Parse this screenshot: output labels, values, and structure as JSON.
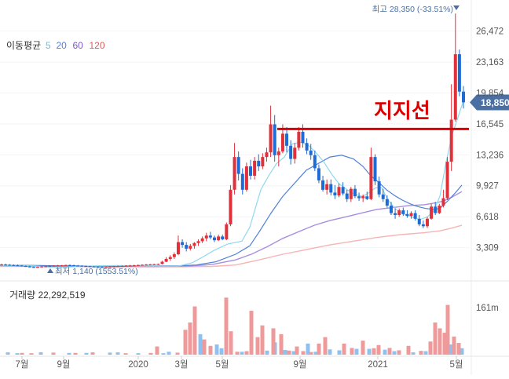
{
  "chart_data": {
    "type": "candlestick",
    "price_axis": {
      "ticks": [
        "26,472",
        "23,163",
        "19,854",
        "16,545",
        "13,236",
        "9,927",
        "6,618",
        "3,309"
      ],
      "ylim": [
        0,
        29800
      ]
    },
    "volume_axis": {
      "ticks": [
        "161m"
      ],
      "ylim": [
        0,
        236
      ]
    },
    "x_labels": [
      "7월",
      "9월",
      "2020",
      "3월",
      "5월",
      "9월",
      "2021",
      "5월"
    ],
    "ma_legend": {
      "label": "이동평균",
      "items": [
        {
          "name": "5",
          "color": "#5cc5e8"
        },
        {
          "name": "20",
          "color": "#4f7fd8"
        },
        {
          "name": "60",
          "color": "#7b57c8"
        },
        {
          "name": "120",
          "color": "#e05a5a"
        }
      ]
    },
    "current_price": "18,850",
    "high_label": "최고 28,350 (-33.51%)",
    "low_label": "최저 1,140 (1553.51%)",
    "volume_label": "거래량 22,292,519",
    "annotation": "지지선",
    "support_level": 16000,
    "colors": {
      "up": "#e0313b",
      "down": "#1f6bd4",
      "vol_up": "#ef9a9a",
      "vol_down": "#90c0f0",
      "ma5": "#8fd8ee",
      "ma60": "#a98ee0",
      "ma120": "#f6b4b4",
      "support": "#dd0000",
      "badge": "#4a6fa5",
      "axis_text": "#555555"
    },
    "candles": [
      [
        1450,
        1600,
        1400,
        1500
      ],
      [
        1500,
        1600,
        1420,
        1480
      ],
      [
        1480,
        1550,
        1400,
        1450
      ],
      [
        1450,
        1500,
        1380,
        1420
      ],
      [
        1420,
        1500,
        1350,
        1400
      ],
      [
        1400,
        1450,
        1300,
        1350
      ],
      [
        1350,
        1400,
        1250,
        1300
      ],
      [
        1300,
        1380,
        1200,
        1250
      ],
      [
        1250,
        1300,
        1150,
        1200
      ],
      [
        1200,
        1280,
        1140,
        1250
      ],
      [
        1250,
        1350,
        1200,
        1300
      ],
      [
        1300,
        1380,
        1250,
        1320
      ],
      [
        1320,
        1400,
        1280,
        1350
      ],
      [
        1350,
        1420,
        1300,
        1380
      ],
      [
        1380,
        1450,
        1320,
        1400
      ],
      [
        1400,
        1460,
        1350,
        1420
      ],
      [
        1420,
        1480,
        1380,
        1450
      ],
      [
        1450,
        1500,
        1400,
        1430
      ],
      [
        1430,
        1480,
        1380,
        1400
      ],
      [
        1400,
        1450,
        1350,
        1380
      ],
      [
        1380,
        1420,
        1300,
        1350
      ],
      [
        1350,
        1400,
        1300,
        1330
      ],
      [
        1330,
        1380,
        1280,
        1300
      ],
      [
        1300,
        1350,
        1250,
        1280
      ],
      [
        1280,
        1320,
        1220,
        1250
      ],
      [
        1250,
        1300,
        1200,
        1230
      ],
      [
        1230,
        1300,
        1180,
        1250
      ],
      [
        1250,
        1320,
        1200,
        1280
      ],
      [
        1280,
        1350,
        1230,
        1300
      ],
      [
        1300,
        1380,
        1250,
        1330
      ],
      [
        1330,
        1400,
        1280,
        1350
      ],
      [
        1350,
        1420,
        1300,
        1380
      ],
      [
        1380,
        1450,
        1330,
        1400
      ],
      [
        1400,
        1480,
        1350,
        1420
      ],
      [
        1420,
        1500,
        1380,
        1450
      ],
      [
        1450,
        1520,
        1400,
        1480
      ],
      [
        1480,
        1550,
        1430,
        1500
      ],
      [
        1500,
        1560,
        1450,
        1520
      ],
      [
        1520,
        1580,
        1470,
        1540
      ],
      [
        1540,
        1600,
        1500,
        1560
      ],
      [
        1560,
        1900,
        1520,
        1800
      ],
      [
        1800,
        2300,
        1750,
        2100
      ],
      [
        2100,
        2500,
        1900,
        2300
      ],
      [
        2300,
        2800,
        2100,
        2600
      ],
      [
        2600,
        4600,
        2500,
        3900
      ],
      [
        3900,
        4200,
        3300,
        3600
      ],
      [
        3600,
        3900,
        2900,
        3200
      ],
      [
        3200,
        3700,
        3000,
        3500
      ],
      [
        3500,
        3900,
        3200,
        3800
      ],
      [
        3800,
        4200,
        3500,
        4000
      ],
      [
        4000,
        4500,
        3800,
        4300
      ],
      [
        4300,
        4900,
        4000,
        4600
      ],
      [
        4600,
        5000,
        4200,
        4400
      ],
      [
        4400,
        4600,
        3900,
        4100
      ],
      [
        4100,
        4700,
        4000,
        4500
      ],
      [
        4500,
        4700,
        4100,
        4200
      ],
      [
        4200,
        6000,
        4100,
        5800
      ],
      [
        5800,
        10000,
        5600,
        9500
      ],
      [
        9500,
        14500,
        9000,
        13000
      ],
      [
        13000,
        13600,
        10500,
        11200
      ],
      [
        11200,
        11800,
        9000,
        9500
      ],
      [
        9500,
        12400,
        9300,
        12000
      ],
      [
        12000,
        12700,
        10600,
        11000
      ],
      [
        11000,
        13000,
        10600,
        12600
      ],
      [
        12600,
        13300,
        11500,
        12000
      ],
      [
        12000,
        13400,
        11700,
        13000
      ],
      [
        13000,
        14000,
        12500,
        13500
      ],
      [
        13500,
        18500,
        13000,
        16500
      ],
      [
        16500,
        17500,
        12500,
        13200
      ],
      [
        13200,
        14000,
        12000,
        13600
      ],
      [
        13600,
        16500,
        13400,
        15500
      ],
      [
        15500,
        16200,
        13500,
        14200
      ],
      [
        14200,
        14800,
        12200,
        12800
      ],
      [
        12800,
        14500,
        12300,
        14000
      ],
      [
        14000,
        16200,
        13700,
        15700
      ],
      [
        15700,
        16500,
        14000,
        14500
      ],
      [
        14500,
        15000,
        13300,
        13700
      ],
      [
        13700,
        14400,
        12700,
        13200
      ],
      [
        13200,
        13700,
        11500,
        11800
      ],
      [
        11800,
        12200,
        10200,
        10500
      ],
      [
        10500,
        11000,
        9300,
        9500
      ],
      [
        9500,
        10600,
        9000,
        10100
      ],
      [
        10100,
        10600,
        8900,
        9200
      ],
      [
        9200,
        10000,
        8500,
        8900
      ],
      [
        8900,
        10200,
        8700,
        9800
      ],
      [
        9800,
        10300,
        8900,
        9100
      ],
      [
        9100,
        9500,
        8200,
        8500
      ],
      [
        8500,
        9800,
        8200,
        9600
      ],
      [
        9600,
        10000,
        8600,
        8800
      ],
      [
        8800,
        9200,
        8300,
        8600
      ],
      [
        8600,
        9000,
        8200,
        8800
      ],
      [
        8800,
        9300,
        8400,
        8500
      ],
      [
        8500,
        14000,
        8400,
        13000
      ],
      [
        13000,
        13300,
        10000,
        10400
      ],
      [
        10400,
        10900,
        8700,
        9000
      ],
      [
        9000,
        9600,
        8200,
        8500
      ],
      [
        8500,
        8900,
        7600,
        7800
      ],
      [
        7800,
        8200,
        6800,
        7000
      ],
      [
        7000,
        7500,
        6400,
        6800
      ],
      [
        6800,
        7500,
        6600,
        7300
      ],
      [
        7300,
        7600,
        6700,
        6900
      ],
      [
        6900,
        7300,
        6500,
        6700
      ],
      [
        6700,
        7200,
        6400,
        7000
      ],
      [
        7000,
        7300,
        6200,
        6400
      ],
      [
        6400,
        6800,
        5600,
        5800
      ],
      [
        5800,
        6200,
        5400,
        5600
      ],
      [
        5600,
        6600,
        5400,
        6400
      ],
      [
        6400,
        8000,
        6300,
        7700
      ],
      [
        7700,
        8200,
        6800,
        7000
      ],
      [
        7000,
        8000,
        6900,
        7800
      ],
      [
        7800,
        9500,
        7600,
        8600
      ],
      [
        8600,
        13000,
        8400,
        12500
      ],
      [
        12500,
        20800,
        11500,
        17000
      ],
      [
        17000,
        28350,
        16800,
        24000
      ],
      [
        24000,
        24500,
        19500,
        20000
      ],
      [
        20000,
        20600,
        18200,
        18850
      ]
    ],
    "ma5": [
      [
        0,
        1380
      ],
      [
        20,
        1390
      ],
      [
        45,
        1350
      ],
      [
        65,
        1200
      ],
      [
        90,
        1250
      ],
      [
        120,
        1350
      ],
      [
        150,
        1400
      ],
      [
        180,
        1350
      ],
      [
        205,
        1330
      ],
      [
        228,
        1350
      ],
      [
        245,
        1700
      ],
      [
        258,
        2300
      ],
      [
        272,
        3000
      ],
      [
        290,
        3700
      ],
      [
        308,
        4000
      ],
      [
        318,
        5500
      ],
      [
        325,
        7500
      ],
      [
        332,
        9500
      ],
      [
        342,
        11000
      ],
      [
        352,
        12300
      ],
      [
        362,
        13000
      ],
      [
        372,
        14400
      ],
      [
        382,
        14600
      ],
      [
        392,
        14300
      ],
      [
        402,
        13500
      ],
      [
        412,
        12500
      ],
      [
        422,
        11200
      ],
      [
        432,
        10100
      ],
      [
        442,
        9500
      ],
      [
        452,
        9000
      ],
      [
        462,
        8800
      ],
      [
        470,
        9200
      ],
      [
        478,
        9700
      ],
      [
        486,
        9700
      ],
      [
        494,
        8400
      ],
      [
        504,
        7400
      ],
      [
        514,
        6900
      ],
      [
        524,
        6600
      ],
      [
        534,
        6300
      ],
      [
        544,
        6600
      ],
      [
        552,
        7200
      ],
      [
        560,
        8800
      ],
      [
        568,
        12500
      ],
      [
        576,
        15500
      ],
      [
        584,
        17500
      ],
      [
        590,
        19000
      ]
    ],
    "ma20": [
      [
        0,
        1400
      ],
      [
        20,
        1420
      ],
      [
        50,
        1390
      ],
      [
        80,
        1350
      ],
      [
        120,
        1330
      ],
      [
        160,
        1340
      ],
      [
        200,
        1360
      ],
      [
        228,
        1380
      ],
      [
        250,
        1450
      ],
      [
        275,
        1800
      ],
      [
        300,
        2600
      ],
      [
        318,
        3500
      ],
      [
        330,
        5000
      ],
      [
        345,
        7000
      ],
      [
        360,
        8800
      ],
      [
        375,
        10200
      ],
      [
        390,
        11600
      ],
      [
        405,
        12300
      ],
      [
        420,
        13000
      ],
      [
        435,
        13200
      ],
      [
        450,
        12800
      ],
      [
        462,
        12000
      ],
      [
        472,
        11000
      ],
      [
        482,
        10300
      ],
      [
        492,
        9500
      ],
      [
        502,
        8900
      ],
      [
        512,
        8400
      ],
      [
        522,
        8000
      ],
      [
        532,
        7700
      ],
      [
        542,
        7500
      ],
      [
        552,
        7400
      ],
      [
        560,
        7500
      ],
      [
        570,
        8300
      ],
      [
        580,
        9200
      ],
      [
        588,
        10000
      ]
    ],
    "ma60": [
      [
        0,
        1380
      ],
      [
        40,
        1360
      ],
      [
        80,
        1330
      ],
      [
        120,
        1300
      ],
      [
        160,
        1290
      ],
      [
        200,
        1300
      ],
      [
        240,
        1340
      ],
      [
        270,
        1500
      ],
      [
        300,
        2000
      ],
      [
        320,
        2600
      ],
      [
        340,
        3400
      ],
      [
        360,
        4300
      ],
      [
        380,
        5000
      ],
      [
        400,
        5700
      ],
      [
        420,
        6200
      ],
      [
        440,
        6600
      ],
      [
        460,
        7000
      ],
      [
        480,
        7400
      ],
      [
        500,
        7600
      ],
      [
        520,
        7800
      ],
      [
        540,
        7900
      ],
      [
        555,
        8100
      ],
      [
        565,
        8300
      ],
      [
        575,
        8700
      ],
      [
        588,
        9300
      ]
    ],
    "ma120": [
      [
        0,
        1300
      ],
      [
        60,
        1290
      ],
      [
        120,
        1270
      ],
      [
        180,
        1250
      ],
      [
        230,
        1260
      ],
      [
        270,
        1300
      ],
      [
        300,
        1450
      ],
      [
        330,
        2000
      ],
      [
        360,
        2600
      ],
      [
        390,
        3100
      ],
      [
        420,
        3600
      ],
      [
        450,
        4000
      ],
      [
        480,
        4400
      ],
      [
        510,
        4700
      ],
      [
        540,
        4900
      ],
      [
        560,
        5100
      ],
      [
        575,
        5400
      ],
      [
        588,
        5700
      ]
    ],
    "volume_up": [
      [
        28,
        6
      ],
      [
        40,
        5
      ],
      [
        68,
        7
      ],
      [
        96,
        6
      ],
      [
        118,
        8
      ],
      [
        160,
        5
      ],
      [
        192,
        6
      ],
      [
        200,
        28
      ],
      [
        226,
        7
      ],
      [
        236,
        85
      ],
      [
        242,
        110
      ],
      [
        248,
        165
      ],
      [
        260,
        52
      ],
      [
        268,
        30
      ],
      [
        288,
        195
      ],
      [
        294,
        80
      ],
      [
        302,
        10
      ],
      [
        314,
        12
      ],
      [
        320,
        150
      ],
      [
        328,
        60
      ],
      [
        334,
        100
      ],
      [
        348,
        90
      ],
      [
        358,
        70
      ],
      [
        368,
        14
      ],
      [
        378,
        28
      ],
      [
        386,
        12
      ],
      [
        396,
        9
      ],
      [
        406,
        38
      ],
      [
        414,
        60
      ],
      [
        438,
        38
      ],
      [
        448,
        23
      ],
      [
        462,
        48
      ],
      [
        476,
        22
      ],
      [
        482,
        33
      ],
      [
        496,
        23
      ],
      [
        508,
        15
      ],
      [
        520,
        30
      ],
      [
        536,
        13
      ],
      [
        548,
        45
      ],
      [
        554,
        110
      ],
      [
        560,
        90
      ],
      [
        566,
        75
      ],
      [
        570,
        170
      ],
      [
        578,
        62
      ],
      [
        584,
        40
      ]
    ],
    "volume_down": [
      [
        10,
        8
      ],
      [
        22,
        5
      ],
      [
        52,
        8
      ],
      [
        88,
        6
      ],
      [
        110,
        6
      ],
      [
        140,
        7
      ],
      [
        150,
        8
      ],
      [
        176,
        5
      ],
      [
        208,
        5
      ],
      [
        215,
        10
      ],
      [
        255,
        70
      ],
      [
        276,
        35
      ],
      [
        282,
        22
      ],
      [
        308,
        10
      ],
      [
        340,
        14
      ],
      [
        350,
        42
      ],
      [
        363,
        16
      ],
      [
        374,
        12
      ],
      [
        392,
        38
      ],
      [
        402,
        10
      ],
      [
        420,
        18
      ],
      [
        432,
        15
      ],
      [
        454,
        20
      ],
      [
        470,
        20
      ],
      [
        490,
        17
      ],
      [
        502,
        12
      ],
      [
        526,
        8
      ],
      [
        542,
        12
      ],
      [
        574,
        35
      ],
      [
        588,
        22
      ]
    ]
  }
}
